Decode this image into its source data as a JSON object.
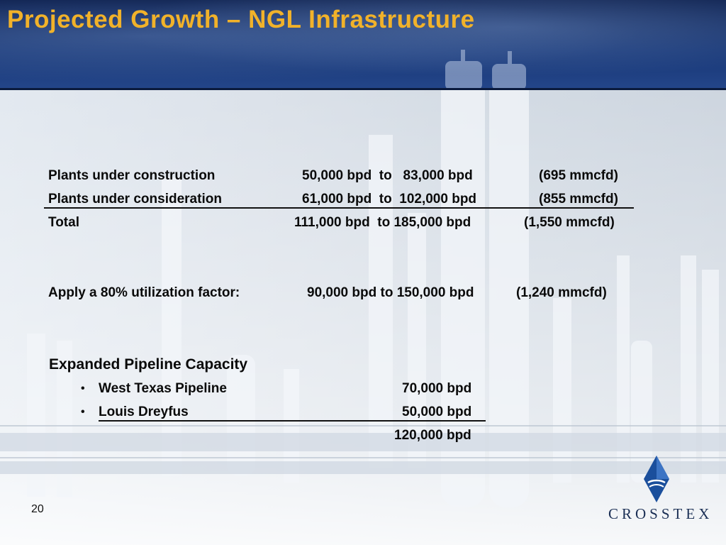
{
  "slide": {
    "title": "Projected Growth – NGL Infrastructure",
    "page_number": "20"
  },
  "plants": {
    "rows": [
      {
        "label": "Plants under construction",
        "range": "50,000 bpd  to   83,000 bpd",
        "gas": "(695 mmcfd)"
      },
      {
        "label": "Plants under consideration",
        "range": "61,000 bpd  to  102,000 bpd",
        "gas": "(855 mmcfd)"
      },
      {
        "label": "Total",
        "range": "111,000 bpd  to 185,000 bpd",
        "gas": "(1,550 mmcfd)"
      }
    ],
    "utilization": {
      "label": "Apply a 80% utilization factor:",
      "range": "90,000 bpd to 150,000 bpd",
      "gas": "(1,240 mmcfd)"
    }
  },
  "pipeline": {
    "heading": "Expanded Pipeline Capacity",
    "items": [
      {
        "name": "West Texas Pipeline",
        "value": "70,000 bpd"
      },
      {
        "name": "Louis Dreyfus",
        "value": "50,000 bpd"
      }
    ],
    "total": "120,000 bpd"
  },
  "brand": {
    "logo_text": "CROSSTEX",
    "colors": {
      "title": "#f1b22a",
      "header": "#173675",
      "logo": "#1b4f9c"
    }
  }
}
